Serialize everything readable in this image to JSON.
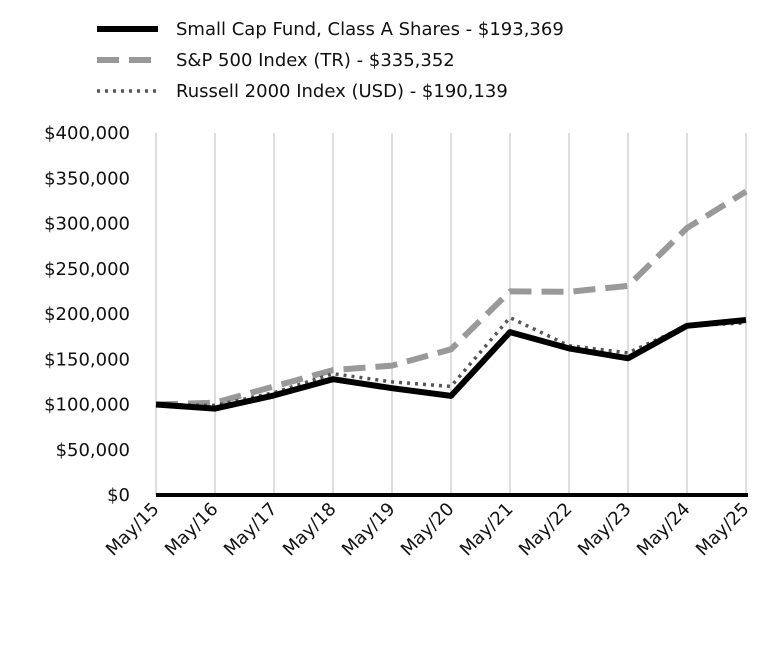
{
  "chart_data": {
    "type": "line",
    "categories": [
      "May/15",
      "May/16",
      "May/17",
      "May/18",
      "May/19",
      "May/20",
      "May/21",
      "May/22",
      "May/23",
      "May/24",
      "May/25"
    ],
    "ylim": [
      0,
      400000
    ],
    "y_ticks": [
      0,
      50000,
      100000,
      150000,
      200000,
      250000,
      300000,
      350000,
      400000
    ],
    "y_tick_labels": [
      "$0",
      "$50,000",
      "$100,000",
      "$150,000",
      "$200,000",
      "$250,000",
      "$300,000",
      "$350,000",
      "$400,000"
    ],
    "grid": "vertical",
    "legend_position": "top-left",
    "series": [
      {
        "name": "Small Cap Fund, Class A Shares - $193,369",
        "style": "solid",
        "color": "#000000",
        "values": [
          100000,
          95500,
          110000,
          128000,
          118000,
          109500,
          180000,
          162000,
          151000,
          187000,
          193369
        ]
      },
      {
        "name": "S&P 500 Index (TR) - $335,352",
        "style": "dashed",
        "color": "#999999",
        "values": [
          100000,
          102000,
          120000,
          138000,
          143000,
          161000,
          225000,
          224500,
          231000,
          295000,
          335352
        ]
      },
      {
        "name": "Russell 2000 Index (USD) - $190,139",
        "style": "dotted",
        "color": "#555555",
        "values": [
          100000,
          99000,
          113000,
          134000,
          125000,
          120000,
          196000,
          165000,
          157000,
          187000,
          190139
        ]
      }
    ]
  }
}
